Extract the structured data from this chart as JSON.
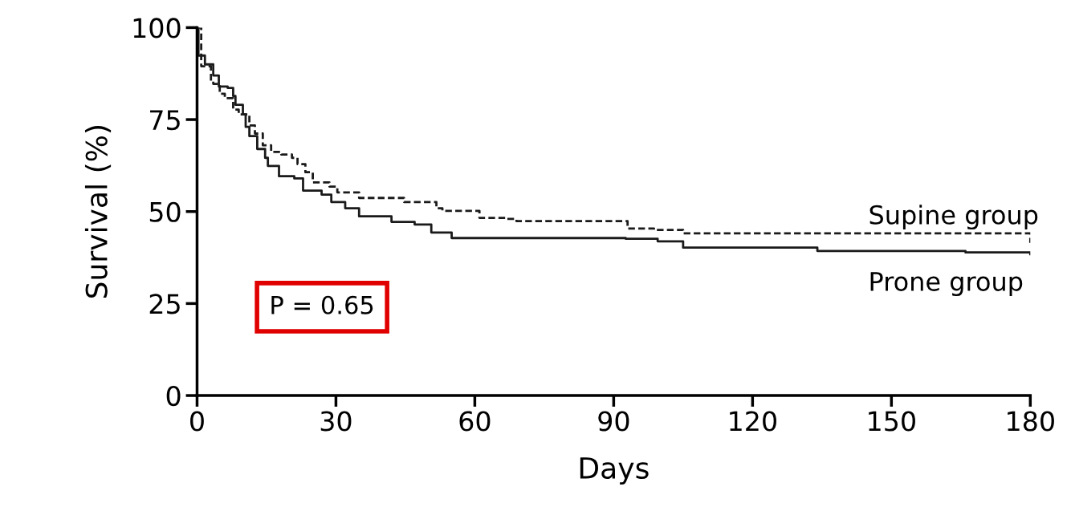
{
  "chart_data": {
    "type": "step",
    "xlabel": "Days",
    "ylabel": "Survival (%)",
    "xlim": [
      0,
      180
    ],
    "ylim": [
      0,
      100
    ],
    "xticks": [
      0,
      30,
      60,
      90,
      120,
      150,
      180
    ],
    "yticks": [
      0,
      25,
      50,
      75,
      100
    ],
    "grid": false,
    "legend": false,
    "marker": "none",
    "series": [
      {
        "name": "Supine group",
        "color": "#1a1a1a",
        "line_style": "dashed",
        "x": [
          0,
          0.9,
          3,
          3.5,
          4.9,
          6,
          7.8,
          9,
          11.3,
          12.5,
          14.2,
          16,
          18.2,
          20.5,
          21.7,
          23.4,
          25,
          28.6,
          30.3,
          35,
          44.7,
          51.7,
          53,
          61,
          67,
          69,
          93,
          98.7,
          105,
          180
        ],
        "values": [
          100,
          89.5,
          85.4,
          84.7,
          82,
          80.8,
          77.7,
          76.4,
          73.4,
          71.2,
          68,
          66.2,
          65.5,
          64.6,
          62.9,
          60.7,
          57.9,
          56.8,
          55.2,
          53.7,
          52.6,
          50.9,
          50.2,
          48.3,
          48,
          47.4,
          45.4,
          45,
          44.1,
          41.5
        ]
      },
      {
        "name": "Prone group",
        "color": "#1a1a1a",
        "line_style": "solid",
        "x": [
          0,
          0.3,
          1.7,
          3.5,
          4.7,
          6.6,
          7.8,
          8.3,
          9.9,
          10.5,
          11.3,
          13,
          14.7,
          15.3,
          17.7,
          21,
          22.9,
          26.9,
          29,
          32,
          35,
          42,
          47,
          50.6,
          55,
          92.6,
          99.5,
          105,
          134,
          166,
          180
        ],
        "values": [
          100,
          92.4,
          90,
          87,
          84,
          83.6,
          81.4,
          79,
          76.4,
          73,
          70.5,
          67,
          64.6,
          62.4,
          59.6,
          59,
          55.7,
          54.6,
          52.6,
          50.9,
          48.7,
          47.2,
          46.5,
          44.3,
          42.8,
          42.6,
          41.9,
          40.2,
          39.3,
          38.9,
          38.4
        ]
      }
    ],
    "annotations": [
      "P = 0.65"
    ]
  }
}
